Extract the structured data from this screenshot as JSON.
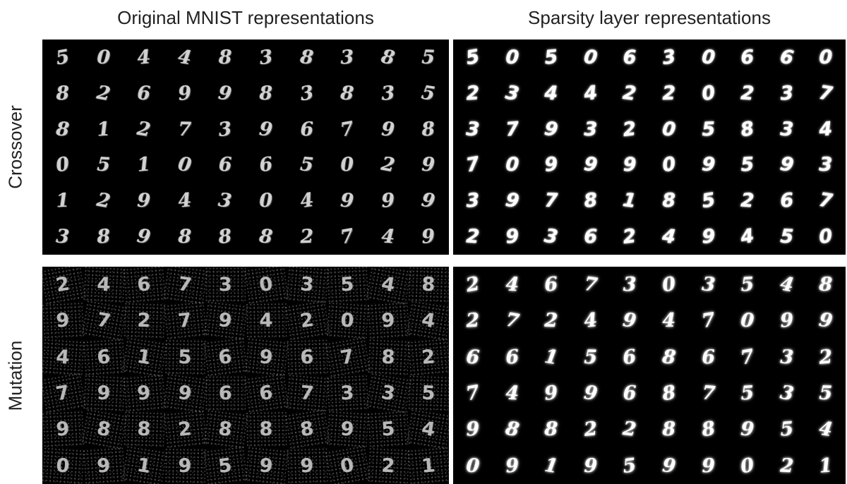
{
  "columns": [
    "Original MNIST representations",
    "Sparsity layer representations"
  ],
  "rows": [
    "Crossover",
    "Mutation"
  ],
  "digits": {
    "crossover_original": [
      [
        "5",
        "0",
        "4",
        "4",
        "8",
        "3",
        "8",
        "3",
        "8",
        "5"
      ],
      [
        "8",
        "2",
        "6",
        "9",
        "9",
        "8",
        "3",
        "8",
        "3",
        "5"
      ],
      [
        "8",
        "1",
        "2",
        "7",
        "3",
        "9",
        "6",
        "7",
        "9",
        "8"
      ],
      [
        "0",
        "5",
        "1",
        "0",
        "6",
        "6",
        "5",
        "0",
        "2",
        "9"
      ],
      [
        "1",
        "2",
        "9",
        "4",
        "3",
        "0",
        "4",
        "9",
        "9",
        "9"
      ],
      [
        "3",
        "8",
        "9",
        "8",
        "8",
        "8",
        "2",
        "7",
        "4",
        "9"
      ]
    ],
    "crossover_sparsity": [
      [
        "5",
        "0",
        "5",
        "0",
        "6",
        "3",
        "0",
        "6",
        "6",
        "0"
      ],
      [
        "2",
        "3",
        "4",
        "4",
        "2",
        "2",
        "0",
        "2",
        "3",
        "7"
      ],
      [
        "3",
        "7",
        "9",
        "3",
        "2",
        "0",
        "5",
        "8",
        "3",
        "4"
      ],
      [
        "7",
        "0",
        "9",
        "9",
        "9",
        "0",
        "9",
        "5",
        "9",
        "3"
      ],
      [
        "3",
        "9",
        "7",
        "8",
        "1",
        "8",
        "5",
        "2",
        "6",
        "7"
      ],
      [
        "2",
        "9",
        "3",
        "6",
        "2",
        "4",
        "9",
        "4",
        "5",
        "0"
      ]
    ],
    "mutation_original": [
      [
        "2",
        "4",
        "6",
        "7",
        "3",
        "0",
        "3",
        "5",
        "4",
        "8"
      ],
      [
        "9",
        "7",
        "2",
        "7",
        "9",
        "4",
        "2",
        "0",
        "9",
        "4"
      ],
      [
        "4",
        "6",
        "1",
        "5",
        "6",
        "9",
        "6",
        "7",
        "8",
        "2"
      ],
      [
        "7",
        "9",
        "9",
        "9",
        "6",
        "6",
        "7",
        "3",
        "3",
        "5"
      ],
      [
        "9",
        "8",
        "8",
        "2",
        "8",
        "8",
        "8",
        "9",
        "5",
        "4"
      ],
      [
        "0",
        "9",
        "1",
        "9",
        "5",
        "9",
        "9",
        "0",
        "2",
        "1"
      ]
    ],
    "mutation_sparsity": [
      [
        "2",
        "4",
        "6",
        "7",
        "3",
        "0",
        "3",
        "5",
        "4",
        "8"
      ],
      [
        "2",
        "7",
        "2",
        "4",
        "9",
        "4",
        "7",
        "0",
        "9",
        "9"
      ],
      [
        "6",
        "6",
        "1",
        "5",
        "6",
        "8",
        "6",
        "7",
        "3",
        "2"
      ],
      [
        "7",
        "4",
        "9",
        "9",
        "6",
        "8",
        "7",
        "5",
        "3",
        "5"
      ],
      [
        "9",
        "8",
        "8",
        "2",
        "2",
        "8",
        "8",
        "9",
        "5",
        "4"
      ],
      [
        "0",
        "9",
        "1",
        "9",
        "5",
        "9",
        "9",
        "0",
        "2",
        "1"
      ]
    ]
  }
}
